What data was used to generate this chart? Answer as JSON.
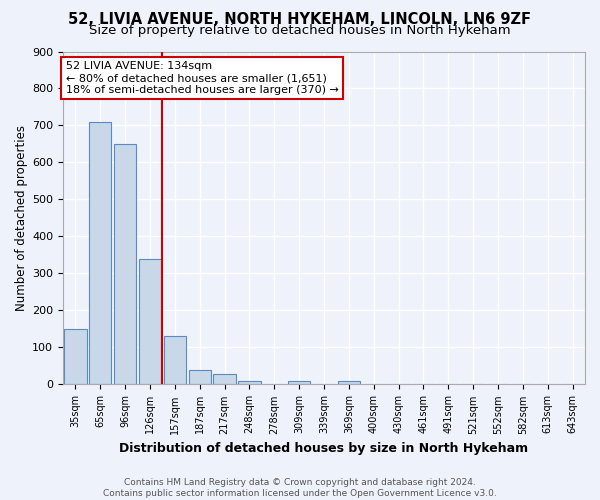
{
  "title1": "52, LIVIA AVENUE, NORTH HYKEHAM, LINCOLN, LN6 9ZF",
  "title2": "Size of property relative to detached houses in North Hykeham",
  "xlabel": "Distribution of detached houses by size in North Hykeham",
  "ylabel": "Number of detached properties",
  "footnote": "Contains HM Land Registry data © Crown copyright and database right 2024.\nContains public sector information licensed under the Open Government Licence v3.0.",
  "categories": [
    "35sqm",
    "65sqm",
    "96sqm",
    "126sqm",
    "157sqm",
    "187sqm",
    "217sqm",
    "248sqm",
    "278sqm",
    "309sqm",
    "339sqm",
    "369sqm",
    "400sqm",
    "430sqm",
    "461sqm",
    "491sqm",
    "521sqm",
    "552sqm",
    "582sqm",
    "613sqm",
    "643sqm"
  ],
  "values": [
    150,
    710,
    650,
    340,
    130,
    40,
    28,
    10,
    0,
    8,
    0,
    8,
    0,
    0,
    0,
    0,
    0,
    0,
    0,
    0,
    0
  ],
  "bar_color": "#c8d8e8",
  "bar_edge_color": "#5a8abf",
  "red_line_x": 3.5,
  "annotation_title": "52 LIVIA AVENUE: 134sqm",
  "annotation_line1": "← 80% of detached houses are smaller (1,651)",
  "annotation_line2": "18% of semi-detached houses are larger (370) →",
  "annotation_box_color": "#ffffff",
  "annotation_box_edge": "#cc0000",
  "red_line_color": "#cc0000",
  "ylim": [
    0,
    900
  ],
  "yticks": [
    0,
    100,
    200,
    300,
    400,
    500,
    600,
    700,
    800,
    900
  ],
  "background_color": "#eef2fb",
  "grid_color": "#ffffff",
  "title1_fontsize": 10.5,
  "title2_fontsize": 9.5,
  "xlabel_fontsize": 9,
  "ylabel_fontsize": 8.5,
  "annotation_fontsize": 8,
  "footnote_fontsize": 6.5
}
